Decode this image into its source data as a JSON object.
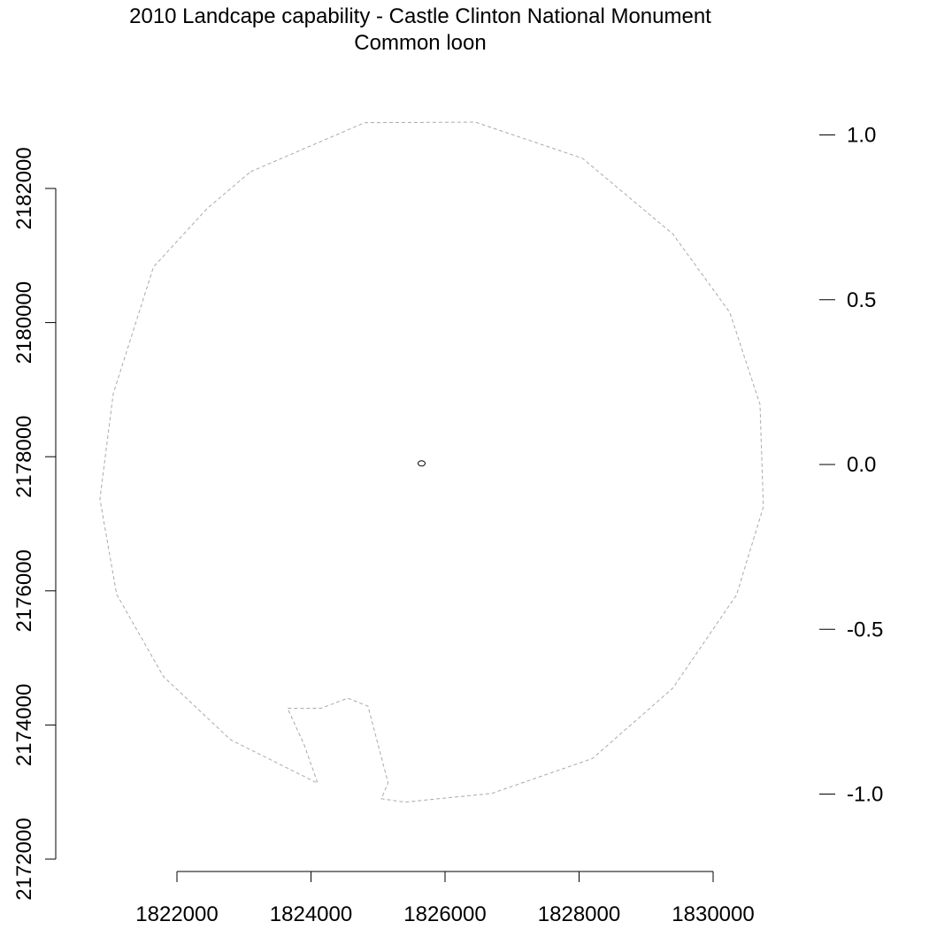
{
  "chart_data": {
    "type": "map",
    "title": "2010 Landcape capability - Castle Clinton National Monument",
    "subtitle": "Common loon",
    "xlabel": "",
    "ylabel": "",
    "x_ticks": [
      1822000,
      1824000,
      1826000,
      1828000,
      1830000
    ],
    "y_ticks": [
      2172000,
      2174000,
      2176000,
      2178000,
      2180000,
      2182000
    ],
    "xlim": [
      1821100,
      1831100
    ],
    "ylim": [
      2171300,
      2184100
    ],
    "legend_ticks": [
      "1.0",
      "0.5",
      "0.0",
      "-0.5",
      "-1.0"
    ],
    "legend_values": [
      1.0,
      0.5,
      0.0,
      -0.5,
      -1.0
    ],
    "legend_range": [
      -1.0,
      1.0
    ],
    "boundary_color": "#aaaaaa",
    "boundary": [
      [
        1823100,
        2182250
      ],
      [
        1824800,
        2182980
      ],
      [
        1826450,
        2182990
      ],
      [
        1828050,
        2182450
      ],
      [
        1829400,
        2181320
      ],
      [
        1830250,
        2180150
      ],
      [
        1830700,
        2178780
      ],
      [
        1830750,
        2177250
      ],
      [
        1830350,
        2175940
      ],
      [
        1829400,
        2174550
      ],
      [
        1828200,
        2173500
      ],
      [
        1826700,
        2172980
      ],
      [
        1825400,
        2172850
      ],
      [
        1825050,
        2172900
      ],
      [
        1825150,
        2173140
      ],
      [
        1824850,
        2174280
      ],
      [
        1824550,
        2174400
      ],
      [
        1824150,
        2174250
      ],
      [
        1823650,
        2174250
      ],
      [
        1823900,
        2173700
      ],
      [
        1824100,
        2173130
      ],
      [
        1822800,
        2173780
      ],
      [
        1821800,
        2174720
      ],
      [
        1821100,
        2175950
      ],
      [
        1820850,
        2177370
      ],
      [
        1821050,
        2178940
      ],
      [
        1821650,
        2180830
      ],
      [
        1822450,
        2181700
      ],
      [
        1823100,
        2182250
      ]
    ],
    "site_marker": {
      "x": 1825650,
      "y": 2177900
    }
  }
}
